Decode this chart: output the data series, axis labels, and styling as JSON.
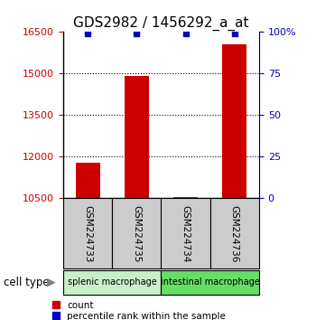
{
  "title": "GDS2982 / 1456292_a_at",
  "samples": [
    "GSM224733",
    "GSM224735",
    "GSM224734",
    "GSM224736"
  ],
  "counts": [
    11780,
    14920,
    10550,
    16050
  ],
  "percentiles": [
    99,
    99,
    99,
    99
  ],
  "group_labels": [
    "splenic macrophage",
    "intestinal macrophage"
  ],
  "group_colors": [
    "#c8f0c8",
    "#66dd66"
  ],
  "ylim_left": [
    10500,
    16500
  ],
  "ylim_right": [
    0,
    100
  ],
  "yticks_left": [
    10500,
    12000,
    13500,
    15000,
    16500
  ],
  "yticks_right": [
    0,
    25,
    50,
    75,
    100
  ],
  "ytick_labels_right": [
    "0",
    "25",
    "50",
    "75",
    "100%"
  ],
  "bar_color": "#cc0000",
  "dot_color": "#0000cc",
  "sample_box_color": "#cccccc",
  "title_fontsize": 11,
  "left_tick_color": "#cc0000",
  "right_tick_color": "#0000cc",
  "gridline_yticks": [
    12000,
    13500,
    15000
  ]
}
